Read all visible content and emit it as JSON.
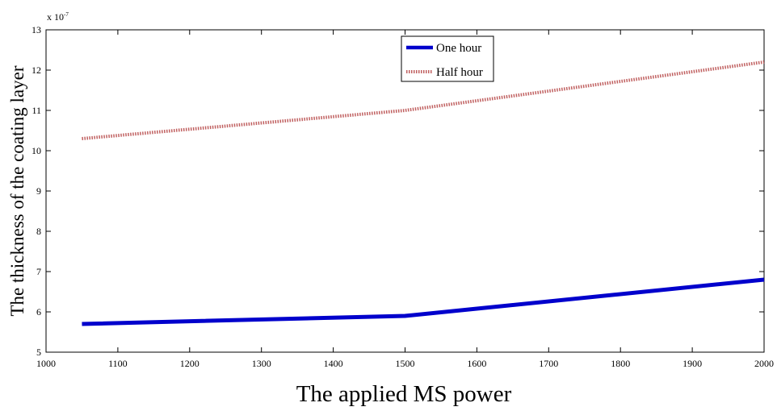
{
  "chart_data": {
    "type": "line",
    "title": "",
    "xlabel": "The applied MS power",
    "ylabel": "The thickness of the coating layer",
    "y_exponent_label": "x 10",
    "y_exponent_power": "-7",
    "xlim": [
      1000,
      2000
    ],
    "ylim": [
      5,
      13
    ],
    "x_ticks": [
      1000,
      1100,
      1200,
      1300,
      1400,
      1500,
      1600,
      1700,
      1800,
      1900,
      2000
    ],
    "y_ticks": [
      5,
      6,
      7,
      8,
      9,
      10,
      11,
      12,
      13
    ],
    "grid": false,
    "legend_position": "top-center",
    "series": [
      {
        "name": "One hour",
        "color": "#0000cc",
        "style": "solid",
        "x": [
          1050,
          1500,
          2000
        ],
        "y": [
          5.7,
          5.9,
          6.8
        ]
      },
      {
        "name": "Half hour",
        "color": "#c06060",
        "style": "dotted",
        "x": [
          1050,
          1500,
          2000
        ],
        "y": [
          10.3,
          11.0,
          12.2
        ]
      }
    ]
  }
}
